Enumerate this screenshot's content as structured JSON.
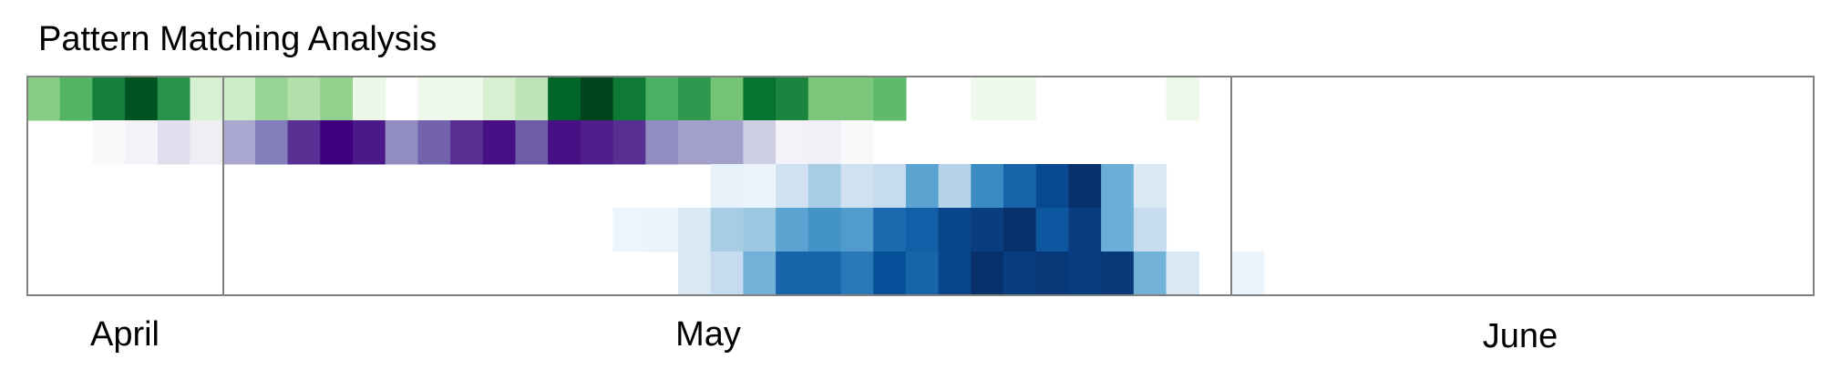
{
  "chart_data": {
    "type": "heatmap",
    "title": "Pattern Matching Analysis",
    "x_unit": "day",
    "x_start": "2024-04-01",
    "x_end": "2024-06-30",
    "months": [
      "April",
      "May",
      "June"
    ],
    "grid": false,
    "legend": "none",
    "rows": [
      {
        "colormap": "greens",
        "start": "2024-04-01",
        "values": [
          0.45,
          0.58,
          0.8,
          0.95,
          0.72,
          0.18,
          0.22,
          0.4,
          0.32,
          0.42,
          0.08,
          0.0,
          0.06,
          0.06,
          0.18,
          0.28,
          0.9,
          1.0,
          0.82,
          0.6,
          0.7,
          0.5,
          0.85,
          0.78,
          0.48,
          0.48,
          0.55,
          0.0,
          0.0,
          0.05,
          0.05,
          0.0,
          0.0,
          0.0,
          0.0,
          0.07,
          0.0
        ]
      },
      {
        "colormap": "purples",
        "start": "2024-04-01",
        "values": [
          0.0,
          0.0,
          0.03,
          0.08,
          0.22,
          0.12,
          0.45,
          0.62,
          0.85,
          1.0,
          0.92,
          0.55,
          0.7,
          0.85,
          0.95,
          0.72,
          0.95,
          0.9,
          0.85,
          0.55,
          0.48,
          0.48,
          0.3,
          0.08,
          0.1,
          0.03
        ]
      },
      {
        "colormap": "blues",
        "start": "2024-04-22",
        "values": [
          0.08,
          0.06,
          0.2,
          0.35,
          0.2,
          0.25,
          0.55,
          0.3,
          0.65,
          0.8,
          0.9,
          1.0,
          0.5,
          0.15
        ]
      },
      {
        "colormap": "blues",
        "start": "2024-04-19",
        "values": [
          0.05,
          0.06,
          0.15,
          0.35,
          0.38,
          0.55,
          0.62,
          0.58,
          0.78,
          0.82,
          0.92,
          0.95,
          1.0,
          0.85,
          0.95,
          0.5,
          0.25
        ]
      },
      {
        "colormap": "blues",
        "start": "2024-04-21",
        "values": [
          0.15,
          0.25,
          0.48,
          0.8,
          0.8,
          0.72,
          0.88,
          0.8,
          0.92,
          1.0,
          0.95,
          0.97,
          0.95,
          0.97,
          0.48,
          0.15,
          0.0,
          0.06
        ]
      }
    ]
  },
  "colors": {
    "greens": [
      "#f7fcf5",
      "#e5f5e0",
      "#c7e9c0",
      "#a1d99b",
      "#74c476",
      "#41ab5d",
      "#238b45",
      "#006d2c",
      "#00441b"
    ],
    "purples": [
      "#fcfbfd",
      "#efedf5",
      "#dadaeb",
      "#bcbddc",
      "#9e9ac8",
      "#807dba",
      "#6a51a3",
      "#54278f",
      "#3f007d"
    ],
    "blues": [
      "#f7fbff",
      "#deebf7",
      "#c6dbef",
      "#9ecae1",
      "#6baed6",
      "#4292c6",
      "#2171b5",
      "#08519c",
      "#08306b"
    ],
    "frame": "#808080"
  }
}
